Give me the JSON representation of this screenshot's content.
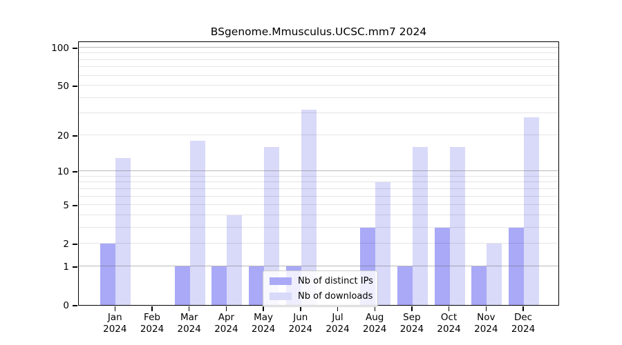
{
  "chart_data": {
    "type": "bar",
    "title": "BSgenome.Mmusculus.UCSC.mm7 2024",
    "categories": [
      "Jan",
      "Feb",
      "Mar",
      "Apr",
      "May",
      "Jun",
      "Jul",
      "Aug",
      "Sep",
      "Oct",
      "Nov",
      "Dec"
    ],
    "x_year": "2024",
    "series": [
      {
        "name": "Nb of distinct IPs",
        "color": "#a9a9f7",
        "values": [
          2,
          0,
          1,
          1,
          1,
          1,
          0,
          3,
          1,
          3,
          1,
          3
        ]
      },
      {
        "name": "Nb of downloads",
        "color": "#d9d9f9",
        "values": [
          13,
          0,
          18,
          4,
          16,
          32,
          0,
          8,
          16,
          16,
          2,
          28
        ]
      }
    ],
    "yscale": "log1p",
    "ylim": [
      0,
      113
    ],
    "y_tick_labels": [
      0,
      1,
      2,
      5,
      10,
      20,
      50,
      100
    ],
    "y_major_gridlines": [
      1,
      10,
      100
    ],
    "y_minor_gridlines": [
      2,
      3,
      4,
      5,
      6,
      7,
      8,
      9,
      20,
      30,
      40,
      50,
      60,
      70,
      80,
      90
    ],
    "grid": true,
    "legend_position": "bottom-center"
  }
}
